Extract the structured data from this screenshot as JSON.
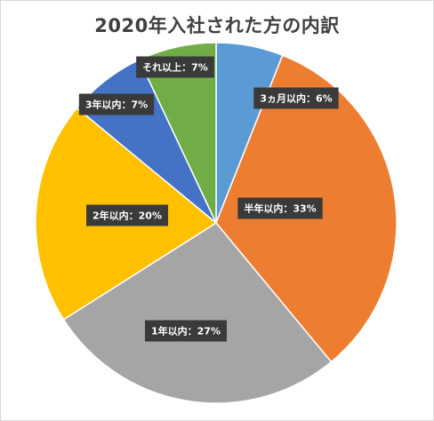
{
  "chart_data": {
    "type": "pie",
    "title": "2020年入社された方の内訳",
    "categories": [
      "3ヵ月以内",
      "半年以内",
      "1年以内",
      "2年以内",
      "3年以内",
      "それ以上"
    ],
    "values": [
      6,
      33,
      27,
      20,
      7,
      7
    ],
    "colors": [
      "#5b9bd5",
      "#ed7d31",
      "#a5a5a5",
      "#ffc000",
      "#4472c4",
      "#70ad47"
    ],
    "data_labels": [
      "3ヵ月以内：6%",
      "半年以内：33%",
      "1年以内：27%",
      "2年以内：20%",
      "3年以内：7%",
      "それ以上：7%"
    ]
  }
}
